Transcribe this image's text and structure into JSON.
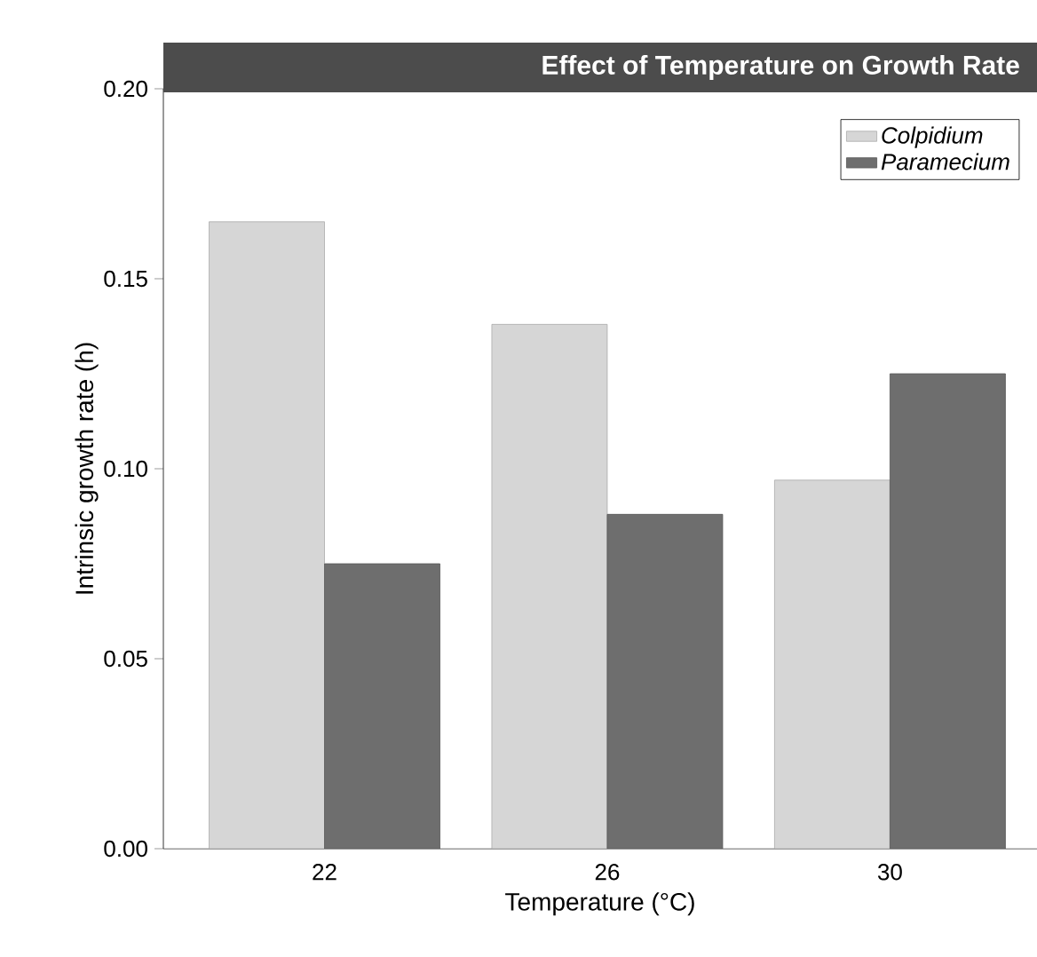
{
  "chart_data": {
    "type": "bar",
    "title": "Effect of Temperature on Growth Rate",
    "xlabel": "Temperature (°C)",
    "ylabel": "Intrinsic growth rate (h)",
    "categories": [
      "22",
      "26",
      "30"
    ],
    "series": [
      {
        "name": "Colpidium",
        "color": "#d6d6d6",
        "values": [
          0.165,
          0.138,
          0.097
        ]
      },
      {
        "name": "Paramecium",
        "color": "#6e6e6e",
        "values": [
          0.075,
          0.088,
          0.125
        ]
      }
    ],
    "ylim": [
      0,
      0.2
    ],
    "yticks": [
      {
        "value": 0,
        "label": "0.00"
      },
      {
        "value": 0.05,
        "label": "0.05"
      },
      {
        "value": 0.1,
        "label": "0.10"
      },
      {
        "value": 0.15,
        "label": "0.15"
      },
      {
        "value": 0.2,
        "label": "0.20"
      }
    ],
    "legend": "top right"
  }
}
